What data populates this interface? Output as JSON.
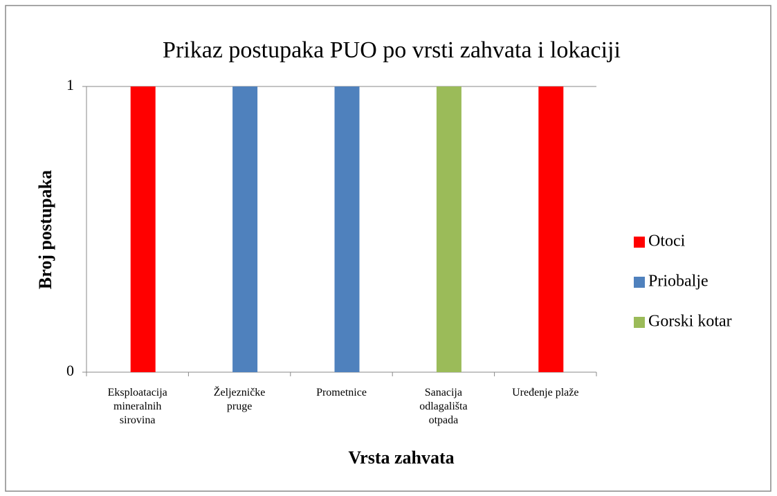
{
  "chart_data": {
    "type": "bar",
    "stacked": true,
    "title": "Prikaz postupaka PUO po vrsti zahvata i lokaciji",
    "x_label": "Vrsta zahvata",
    "y_label": "Broj postupaka",
    "categories": [
      "Eksploatacija\nmineralnih\nsirovina",
      "Željezničke\npruge",
      "Prometnice",
      "Sanacija\nodlagališta\notpada",
      "Uređenje plaže"
    ],
    "series": [
      {
        "name": "Otoci",
        "color": "#ff0000",
        "values": [
          1,
          0,
          0,
          0,
          1
        ]
      },
      {
        "name": "Priobalje",
        "color": "#4f81bd",
        "values": [
          0,
          1,
          1,
          0,
          0
        ]
      },
      {
        "name": "Gorski kotar",
        "color": "#9bbb59",
        "values": [
          0,
          0,
          0,
          1,
          0
        ]
      }
    ],
    "ylim": [
      0,
      1
    ],
    "yticks": [
      0,
      1
    ],
    "grid": true,
    "legend": "right"
  }
}
